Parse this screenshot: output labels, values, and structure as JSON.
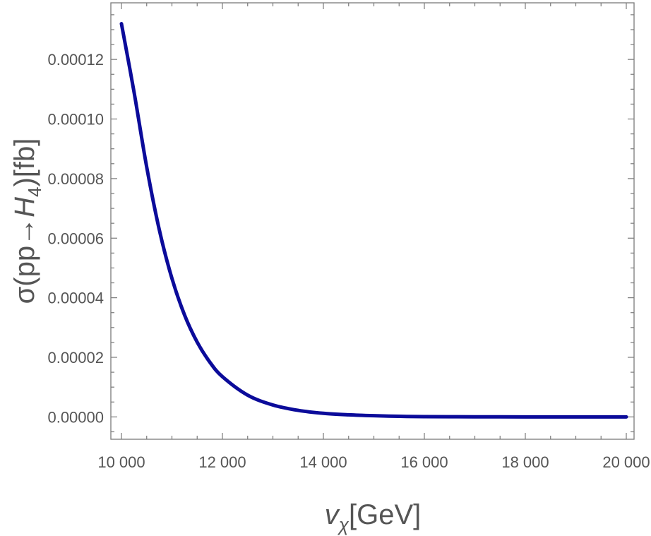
{
  "chart_data": {
    "type": "line",
    "xlabel": {
      "var": "v",
      "sub": "χ",
      "unit": "[GeV]"
    },
    "ylabel": {
      "prefix": "σ(pp→",
      "var": "H",
      "sub": "4",
      "suffix": ")[fb]"
    },
    "xlim": [
      10000,
      20000
    ],
    "ylim": [
      -7.5e-06,
      0.000139
    ],
    "x_ticks": [
      10000,
      12000,
      14000,
      16000,
      18000,
      20000
    ],
    "x_tick_labels": [
      "10 000",
      "12 000",
      "14 000",
      "16 000",
      "18 000",
      "20 000"
    ],
    "y_ticks": [
      0,
      2e-05,
      4e-05,
      6e-05,
      8e-05,
      0.0001,
      0.00012
    ],
    "y_tick_labels": [
      "0.00000",
      "0.00002",
      "0.00004",
      "0.00006",
      "0.00008",
      "0.00010",
      "0.00012"
    ],
    "grid": false,
    "series": [
      {
        "color": "#0b0b9a",
        "x": [
          10000,
          10250,
          10500,
          10750,
          11000,
          11250,
          11500,
          11750,
          12000,
          12500,
          13000,
          13500,
          14000,
          14500,
          15000,
          15500,
          16000,
          17000,
          18000,
          19000,
          20000
        ],
        "y": [
          0.000132,
          0.000109,
          8.39e-05,
          6.28e-05,
          4.65e-05,
          3.42e-05,
          2.51e-05,
          1.84e-05,
          1.35e-05,
          7.3e-06,
          4e-06,
          2.2e-06,
          1.2e-06,
          7e-07,
          4e-07,
          2e-07,
          1e-07,
          3e-08,
          1e-08,
          0.0,
          0.0
        ]
      }
    ]
  }
}
